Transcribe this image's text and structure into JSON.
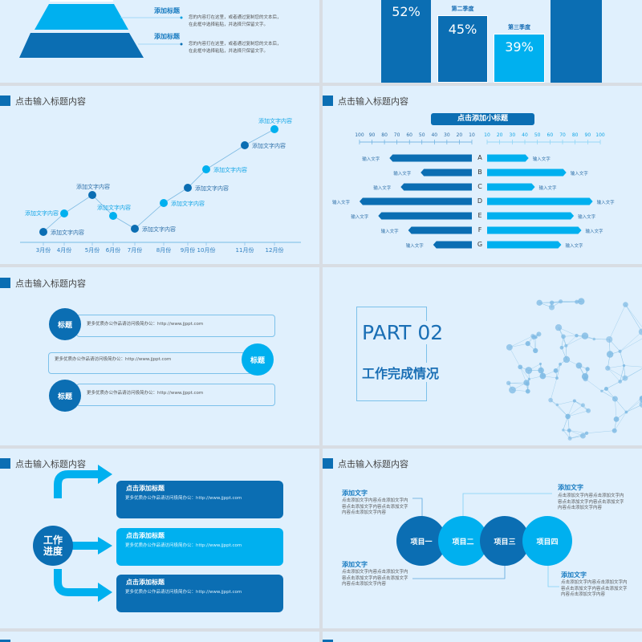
{
  "colors": {
    "dark": "#0b6eb3",
    "light": "#00b0ef",
    "background": "#e0f0fd"
  },
  "pyramid_slide": {
    "items": [
      {
        "title": "添加标题",
        "line1": "您的内容打在这里，或者通过复制您的文本后，",
        "line2": "在此框中选择粘贴，并选择只保留文字。"
      },
      {
        "title": "添加标题",
        "line1": "您的内容打在这里，或者通过复制您的文本后，",
        "line2": "在此框中选择粘贴，并选择只保留文字。"
      }
    ]
  },
  "bar_slide": {
    "bars": [
      {
        "label": "",
        "value": "52%"
      },
      {
        "label": "第二季度",
        "value": "45%"
      },
      {
        "label": "第三季度",
        "value": "39%"
      },
      {
        "label": "",
        "value": ""
      }
    ]
  },
  "line_slide": {
    "title": "点击输入标题内容",
    "points": [
      {
        "month": "3月份",
        "label": "添加文字内容"
      },
      {
        "month": "4月份",
        "label": "添加文字内容"
      },
      {
        "month": "5月份",
        "label": "添加文字内容"
      },
      {
        "month": "6月份",
        "label": "添加文字内容"
      },
      {
        "month": "7月份",
        "label": "添加文字内容"
      },
      {
        "month": "8月份",
        "label": "添加文字内容"
      },
      {
        "month": "9月份",
        "label": "添加文字内容"
      },
      {
        "month": "10月份",
        "label": "添加文字内容"
      },
      {
        "month": "11月份",
        "label": "添加文字内容"
      },
      {
        "month": "12月份",
        "label": "添加文字内容"
      }
    ]
  },
  "butterfly_slide": {
    "title": "点击输入标题内容",
    "subtitle": "点击添加小标题",
    "left_axis": [
      100,
      90,
      80,
      70,
      60,
      50,
      40,
      30,
      20,
      10
    ],
    "right_axis": [
      10,
      20,
      30,
      40,
      50,
      60,
      70,
      80,
      90,
      100
    ],
    "rows": [
      {
        "category": "A",
        "left": 76,
        "right": 43,
        "left_label": "输入文字",
        "right_label": "输入文字"
      },
      {
        "category": "B",
        "left": 51,
        "right": 73,
        "left_label": "输入文字",
        "right_label": "输入文字"
      },
      {
        "category": "C",
        "left": 67,
        "right": 48,
        "left_label": "输入文字",
        "right_label": "输入文字"
      },
      {
        "category": "D",
        "left": 100,
        "right": 94,
        "left_label": "输入文字",
        "right_label": "输入文字"
      },
      {
        "category": "E",
        "left": 85,
        "right": 79,
        "left_label": "输入文字",
        "right_label": "输入文字"
      },
      {
        "category": "F",
        "left": 61,
        "right": 85,
        "left_label": "输入文字",
        "right_label": "输入文字"
      },
      {
        "category": "G",
        "left": 41,
        "right": 69,
        "left_label": "输入文字",
        "right_label": "输入文字"
      }
    ]
  },
  "title_cards_slide": {
    "title": "点击输入标题内容",
    "cards": [
      {
        "badge": "标题",
        "text": "更多优质办公作品请访问极简办公：http://www.jjppt.com"
      },
      {
        "badge": "标题",
        "text": "更多优质办公作品请访问极简办公：http://www.jjppt.com"
      },
      {
        "badge": "标题",
        "text": "更多优质办公作品请访问极简办公：http://www.jjppt.com"
      }
    ]
  },
  "section_slide": {
    "part": "PART 02",
    "heading": "工作完成情况"
  },
  "progress_slide": {
    "title": "点击输入标题内容",
    "hub_line1": "工作",
    "hub_line2": "进度",
    "boxes": [
      {
        "title": "点击添加标题",
        "text": "更多优质办公作品请访问极简办公：http://www.jjppt.com"
      },
      {
        "title": "点击添加标题",
        "text": "更多优质办公作品请访问极简办公：http://www.jjppt.com"
      },
      {
        "title": "点击添加标题",
        "text": "更多优质办公作品请访问极简办公：http://www.jjppt.com"
      }
    ]
  },
  "projects_slide": {
    "title": "点击输入标题内容",
    "projects": [
      "项目一",
      "项目二",
      "项目三",
      "项目四"
    ],
    "notes": [
      {
        "heading": "添加文字",
        "body": "点击添加文字内容点击添加文字内容点击添加文字内容点击添加文字内容点击添加文字内容"
      },
      {
        "heading": "添加文字",
        "body": "点击添加文字内容点击添加文字内容点击添加文字内容点击添加文字内容点击添加文字内容"
      },
      {
        "heading": "添加文字",
        "body": "点击添加文字内容点击添加文字内容点击添加文字内容点击添加文字内容点击添加文字内容"
      },
      {
        "heading": "添加文字",
        "body": "点击添加文字内容点击添加文字内容点击添加文字内容点击添加文字内容点击添加文字内容"
      }
    ]
  }
}
